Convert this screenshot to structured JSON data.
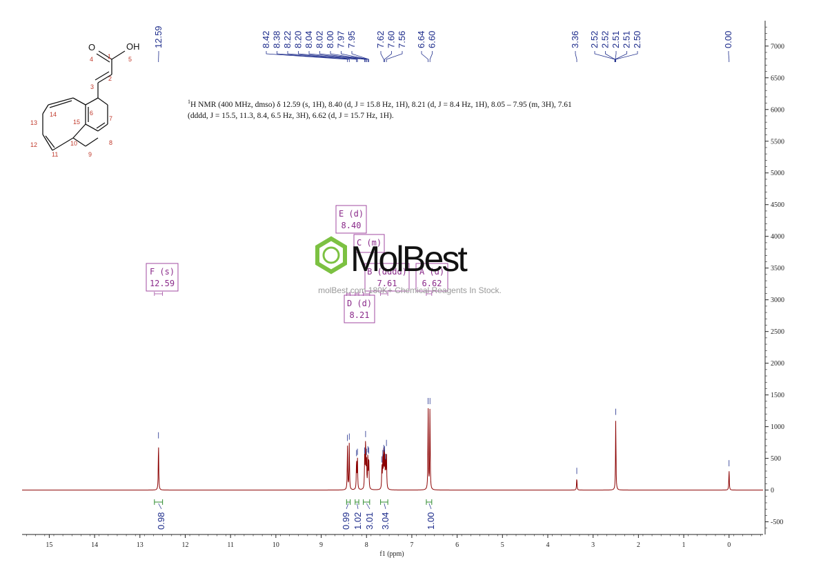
{
  "description_text": {
    "nucleus_sup": "1",
    "line": "H NMR (400 MHz, dmso) δ 12.59 (s, 1H), 8.40 (d, J = 15.8 Hz, 1H), 8.21 (d, J = 8.4 Hz, 1H), 8.05 – 7.95 (m, 3H), 7.61 (dddd, J = 15.5, 11.3, 8.4, 6.5 Hz, 3H), 6.62 (d, J = 15.7 Hz, 1H)."
  },
  "watermark": {
    "logo": "MolBest",
    "sub": "molBest.com 180K+ Chemical Reagents In Stock.",
    "accent": "#7cc142"
  },
  "molecule": {
    "oxygen_label": "O",
    "oh_label": "OH",
    "atom_numbers": [
      "1",
      "2",
      "3",
      "4",
      "5",
      "6",
      "7",
      "8",
      "9",
      "10",
      "11",
      "12",
      "13",
      "14",
      "15"
    ]
  },
  "colors": {
    "spectrum": "#8b0000",
    "peak_label": "#1b2a8a",
    "multiplet_box": "#a04aa0",
    "integral": "#2e8b2e",
    "atom_number": "#c0392b"
  },
  "chart_data": {
    "type": "line",
    "xlabel": "f1 (ppm)",
    "xlim": [
      15.6,
      -0.75
    ],
    "ylim": [
      -700,
      7400
    ],
    "x_ticks": [
      15,
      14,
      13,
      12,
      11,
      10,
      9,
      8,
      7,
      6,
      5,
      4,
      3,
      2,
      1,
      0
    ],
    "y_ticks": [
      -500,
      0,
      500,
      1000,
      1500,
      2000,
      2500,
      3000,
      3500,
      4000,
      4500,
      5000,
      5500,
      6000,
      6500,
      7000
    ],
    "peak_labels": [
      "12.59",
      "8.42",
      "8.38",
      "8.22",
      "8.20",
      "8.04",
      "8.02",
      "8.00",
      "7.97",
      "7.95",
      "7.62",
      "7.60",
      "7.56",
      "6.64",
      "6.60",
      "3.36",
      "2.52",
      "2.52",
      "2.51",
      "2.51",
      "2.50",
      "0.00"
    ],
    "peaks": [
      {
        "ppm": 12.59,
        "height": 760
      },
      {
        "ppm": 8.42,
        "height": 720
      },
      {
        "ppm": 8.38,
        "height": 740
      },
      {
        "ppm": 8.22,
        "height": 480
      },
      {
        "ppm": 8.2,
        "height": 500
      },
      {
        "ppm": 8.04,
        "height": 520
      },
      {
        "ppm": 8.02,
        "height": 780
      },
      {
        "ppm": 8.0,
        "height": 500
      },
      {
        "ppm": 7.97,
        "height": 540
      },
      {
        "ppm": 7.95,
        "height": 520
      },
      {
        "ppm": 7.66,
        "height": 380
      },
      {
        "ppm": 7.64,
        "height": 480
      },
      {
        "ppm": 7.62,
        "height": 560
      },
      {
        "ppm": 7.6,
        "height": 540
      },
      {
        "ppm": 7.58,
        "height": 420
      },
      {
        "ppm": 7.56,
        "height": 640
      },
      {
        "ppm": 6.64,
        "height": 1300
      },
      {
        "ppm": 6.6,
        "height": 1300
      },
      {
        "ppm": 3.36,
        "height": 200
      },
      {
        "ppm": 2.5,
        "height": 1130
      },
      {
        "ppm": 0.0,
        "height": 320
      }
    ],
    "integrals": [
      {
        "from": 12.68,
        "to": 12.5,
        "value": "0.98"
      },
      {
        "from": 8.44,
        "to": 8.36,
        "value": "0.99"
      },
      {
        "from": 8.25,
        "to": 8.17,
        "value": "1.02"
      },
      {
        "from": 8.07,
        "to": 7.93,
        "value": "3.01"
      },
      {
        "from": 7.69,
        "to": 7.53,
        "value": "3.04"
      },
      {
        "from": 6.68,
        "to": 6.56,
        "value": "1.00"
      }
    ],
    "multiplets": [
      {
        "letter": "F (s)",
        "shift": "12.59",
        "range_from": 12.68,
        "range_to": 12.5
      },
      {
        "letter": "E (d)",
        "shift": "8.40",
        "range_from": 8.44,
        "range_to": 8.36
      },
      {
        "letter": "C (m)",
        "shift": "",
        "range_from": 8.07,
        "range_to": 7.93
      },
      {
        "letter": "B (dddd)",
        "shift": "7.61",
        "range_from": 7.69,
        "range_to": 7.53
      },
      {
        "letter": "A (d)",
        "shift": "6.62",
        "range_from": 6.68,
        "range_to": 6.56
      },
      {
        "letter": "D (d)",
        "shift": "8.21",
        "range_from": 8.25,
        "range_to": 8.17
      }
    ]
  }
}
